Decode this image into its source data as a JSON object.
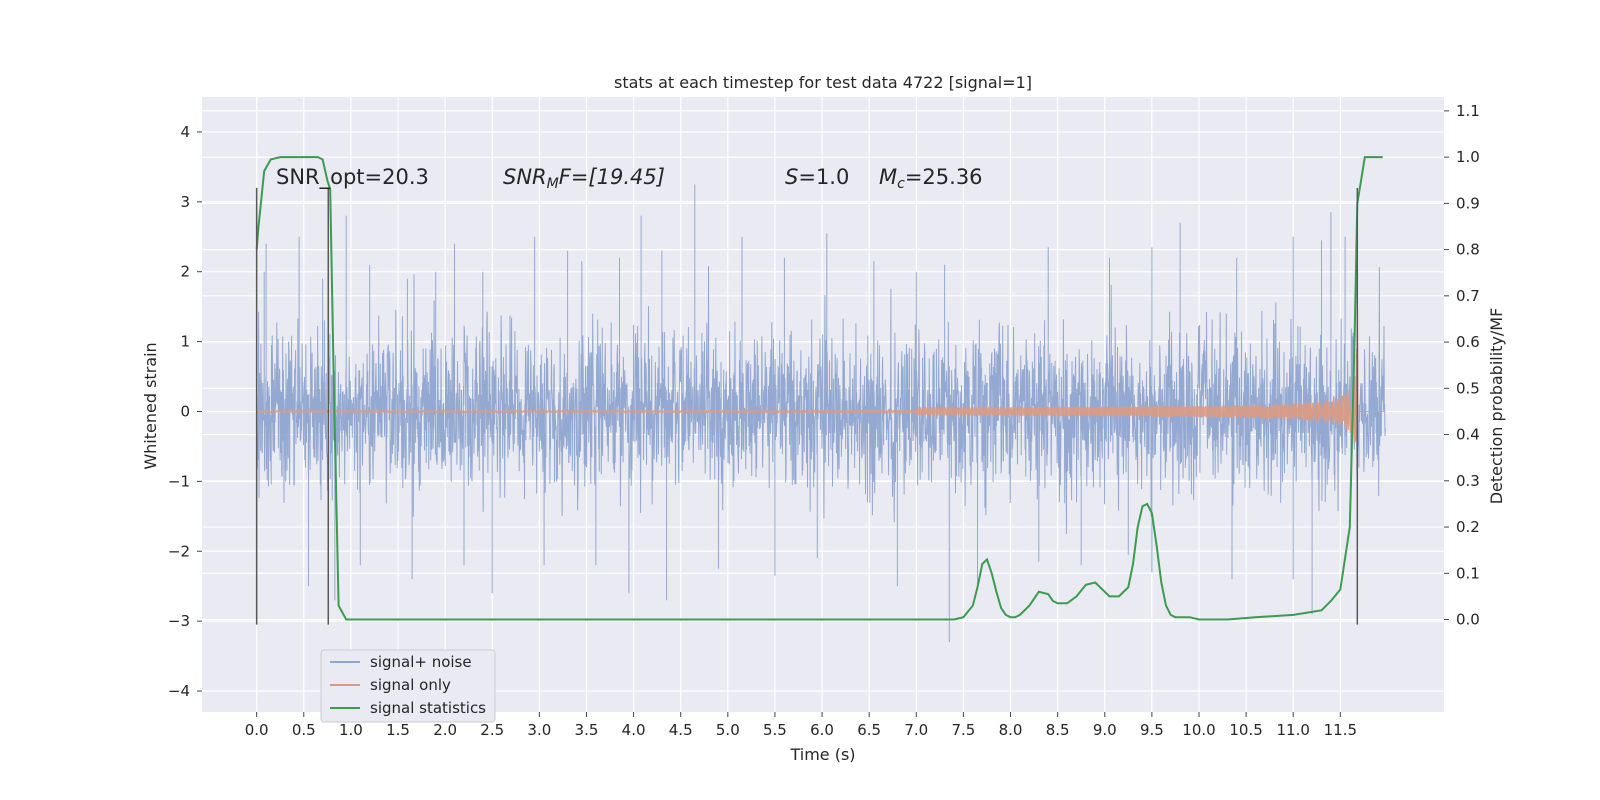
{
  "chart_data": {
    "type": "line",
    "title": "stats at each timestep for test data 4722 [signal=1]",
    "xlabel": "Time (s)",
    "ylabel_left": "Whitened strain",
    "ylabel_right": "Detection probability/MF",
    "xlim": [
      -0.58,
      12.6
    ],
    "ylim_left": [
      -4.3,
      4.5
    ],
    "ylim_right": [
      -0.2,
      1.13
    ],
    "x_ticks": [
      "0.0",
      "0.5",
      "1.0",
      "1.5",
      "2.0",
      "2.5",
      "3.0",
      "3.5",
      "4.0",
      "4.5",
      "5.0",
      "5.5",
      "6.0",
      "6.5",
      "7.0",
      "7.5",
      "8.0",
      "8.5",
      "9.0",
      "9.5",
      "10.0",
      "10.5",
      "11.0",
      "11.5"
    ],
    "y_left_ticks": [
      "4",
      "3",
      "2",
      "1",
      "0",
      "−1",
      "−2",
      "−3",
      "−4"
    ],
    "y_right_ticks": [
      "1.1",
      "1.0",
      "0.9",
      "0.8",
      "0.7",
      "0.6",
      "0.5",
      "0.4",
      "0.3",
      "0.2",
      "0.1",
      "0.0"
    ],
    "grid": true,
    "legend_position": "lower-left",
    "colors": {
      "noise": "#8fa5cf",
      "signal": "#dd9a82",
      "stats": "#3b9b4f",
      "vline": "#595959",
      "background": "#eaeaf2",
      "grid": "#ffffff"
    },
    "annotations": {
      "snr_opt": "SNR_opt=20.3",
      "snr_mf_prefix": "SNR",
      "snr_mf_sub": "M",
      "snr_mf_suffix": "F=[19.45]",
      "s_var": "S",
      "s_val": "=1.0",
      "mc_var": "M",
      "mc_sub": "c",
      "mc_val": "=25.36"
    },
    "vertical_lines": [
      0.0,
      0.76,
      11.68
    ],
    "series": [
      {
        "name": "signal+ noise",
        "description": "noise band approx ±1.3 with spikes",
        "spikes": [
          [
            0.08,
            2.0
          ],
          [
            0.1,
            2.4
          ],
          [
            0.45,
            2.5
          ],
          [
            0.7,
            1.9
          ],
          [
            0.95,
            2.8
          ],
          [
            1.2,
            2.1
          ],
          [
            1.6,
            1.9
          ],
          [
            1.9,
            2.0
          ],
          [
            2.1,
            2.4
          ],
          [
            2.4,
            2.0
          ],
          [
            2.95,
            2.5
          ],
          [
            3.3,
            2.3
          ],
          [
            3.45,
            2.15
          ],
          [
            3.85,
            2.2
          ],
          [
            4.08,
            2.8
          ],
          [
            4.3,
            2.3
          ],
          [
            4.65,
            3.25
          ],
          [
            5.15,
            2.5
          ],
          [
            5.6,
            2.2
          ],
          [
            6.05,
            2.55
          ],
          [
            6.55,
            2.15
          ],
          [
            7.0,
            2.0
          ],
          [
            7.3,
            2.1
          ],
          [
            8.4,
            2.35
          ],
          [
            9.05,
            2.2
          ],
          [
            9.5,
            2.35
          ],
          [
            9.8,
            2.7
          ],
          [
            10.4,
            2.2
          ],
          [
            11.0,
            2.5
          ],
          [
            11.3,
            2.45
          ],
          [
            11.4,
            2.85
          ],
          [
            11.55,
            2.5
          ],
          [
            0.55,
            -2.5
          ],
          [
            0.83,
            -2.7
          ],
          [
            1.1,
            -2.2
          ],
          [
            1.65,
            -2.4
          ],
          [
            2.2,
            -2.2
          ],
          [
            2.5,
            -2.6
          ],
          [
            3.05,
            -2.2
          ],
          [
            3.6,
            -2.2
          ],
          [
            3.95,
            -2.6
          ],
          [
            4.35,
            -2.7
          ],
          [
            4.9,
            -2.25
          ],
          [
            5.5,
            -2.35
          ],
          [
            5.95,
            -2.1
          ],
          [
            6.8,
            -2.5
          ],
          [
            7.35,
            -3.3
          ],
          [
            7.65,
            -2.5
          ],
          [
            8.3,
            -2.15
          ],
          [
            8.75,
            -2.2
          ],
          [
            9.25,
            -2.05
          ],
          [
            9.5,
            -2.3
          ],
          [
            10.35,
            -2.4
          ],
          [
            11.0,
            -2.4
          ],
          [
            11.2,
            -2.9
          ]
        ]
      },
      {
        "name": "signal only",
        "description": "chirp growing from ~0.03 to ~3.5 near 11.68 s"
      },
      {
        "name": "signal statistics",
        "x": [
          0.0,
          0.02,
          0.08,
          0.15,
          0.25,
          0.4,
          0.55,
          0.65,
          0.7,
          0.75,
          0.78,
          0.82,
          0.87,
          0.95,
          1.05,
          2.0,
          3.0,
          4.0,
          5.0,
          6.0,
          7.0,
          7.4,
          7.5,
          7.6,
          7.65,
          7.7,
          7.75,
          7.8,
          7.85,
          7.9,
          7.95,
          8.0,
          8.05,
          8.1,
          8.2,
          8.3,
          8.4,
          8.45,
          8.5,
          8.6,
          8.7,
          8.8,
          8.9,
          8.95,
          9.05,
          9.15,
          9.25,
          9.3,
          9.35,
          9.4,
          9.45,
          9.5,
          9.55,
          9.6,
          9.65,
          9.7,
          9.75,
          9.8,
          9.85,
          9.9,
          10.0,
          10.3,
          10.6,
          11.0,
          11.3,
          11.4,
          11.5,
          11.6,
          11.65,
          11.68,
          11.72,
          11.76,
          11.8,
          11.85,
          11.9,
          11.95
        ],
        "values": [
          0.8,
          0.85,
          0.97,
          0.995,
          1.0,
          1.0,
          1.0,
          1.0,
          0.995,
          0.95,
          0.93,
          0.5,
          0.03,
          0.0,
          0.0,
          0.0,
          0.0,
          0.0,
          0.0,
          0.0,
          0.0,
          0.0,
          0.005,
          0.03,
          0.07,
          0.12,
          0.13,
          0.1,
          0.06,
          0.025,
          0.01,
          0.005,
          0.005,
          0.01,
          0.03,
          0.06,
          0.055,
          0.04,
          0.035,
          0.035,
          0.05,
          0.075,
          0.08,
          0.07,
          0.05,
          0.05,
          0.07,
          0.12,
          0.2,
          0.245,
          0.25,
          0.23,
          0.16,
          0.08,
          0.03,
          0.01,
          0.005,
          0.005,
          0.005,
          0.005,
          0.0,
          0.0,
          0.005,
          0.01,
          0.02,
          0.04,
          0.065,
          0.2,
          0.6,
          0.9,
          0.95,
          1.0,
          1.0,
          1.0,
          1.0,
          1.0
        ]
      }
    ]
  }
}
